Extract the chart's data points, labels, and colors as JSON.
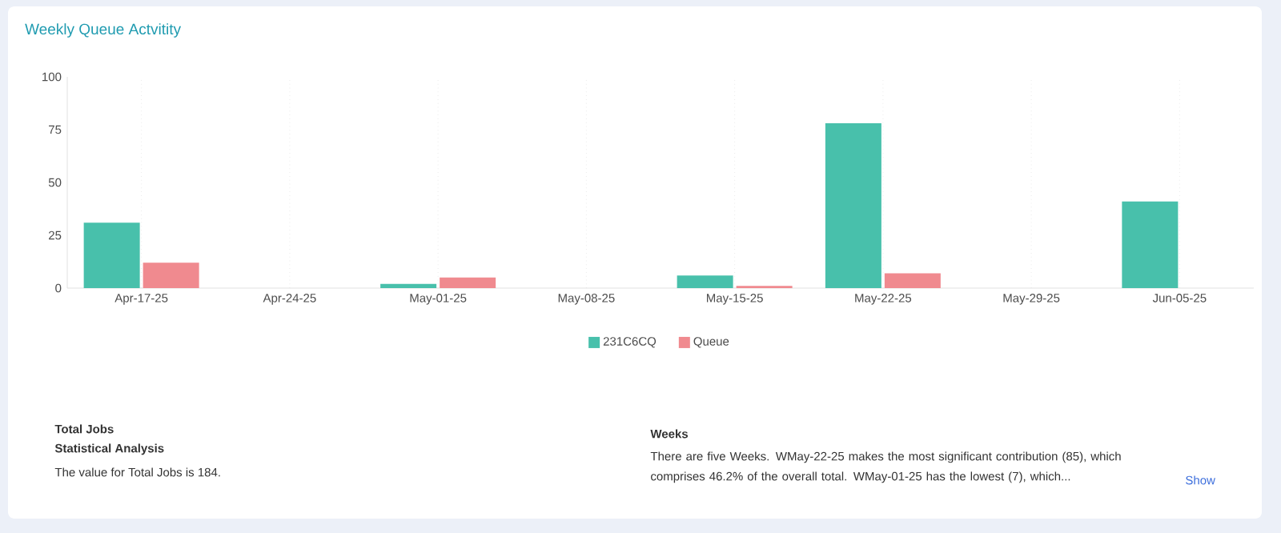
{
  "chart_data": {
    "type": "bar",
    "title": "Weekly Queue Actvitity",
    "categories": [
      "Apr-17-25",
      "Apr-24-25",
      "May-01-25",
      "May-08-25",
      "May-15-25",
      "May-22-25",
      "May-29-25",
      "Jun-05-25"
    ],
    "series": [
      {
        "name": "231C6CQ",
        "color": "#48c0ab",
        "values": [
          31,
          0,
          2,
          0,
          6,
          78,
          0,
          41
        ]
      },
      {
        "name": "Queue",
        "color": "#f08a8f",
        "values": [
          12,
          0,
          5,
          0,
          1,
          7,
          0,
          0
        ]
      }
    ],
    "ylim": [
      0,
      100
    ],
    "yticks": [
      0,
      25,
      50,
      75,
      100
    ],
    "grid": "x",
    "legend": "bottom",
    "annotations": [
      "Total Jobs",
      "Statistical Analysis",
      "The value for Total Jobs is 184.",
      "Weeks",
      "There are five Weeks. WMay-22-25 makes the most significant contribution (85), which comprises 46.2% of the overall total. WMay-01-25 has the lowest (7), which...",
      "Show"
    ]
  }
}
